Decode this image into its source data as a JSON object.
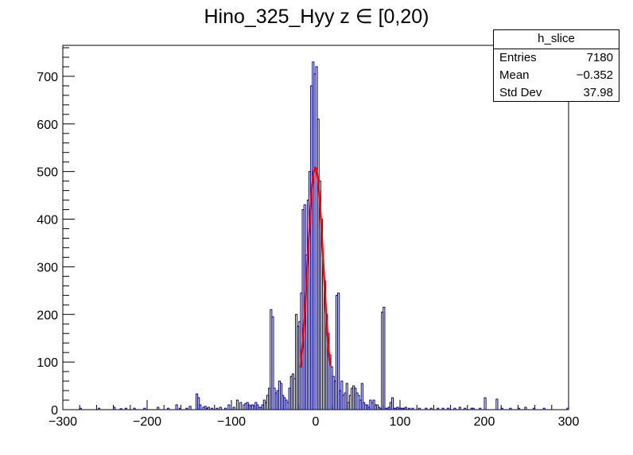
{
  "title": "Hino_325_Hyy z  ∈ [0,20)",
  "stats": {
    "name": "h_slice",
    "entries_label": "Entries",
    "entries_value": "7180",
    "mean_label": "Mean",
    "mean_value": "−0.352",
    "stddev_label": "Std Dev",
    "stddev_value": "37.98"
  },
  "chart_data": {
    "type": "histogram",
    "title": "Hino_325_Hyy z  ∈ [0,20)",
    "xlim": [
      -300,
      300
    ],
    "ylim": [
      0,
      765
    ],
    "x_ticks": [
      -300,
      -200,
      -100,
      0,
      100,
      200,
      300
    ],
    "y_ticks": [
      0,
      100,
      200,
      300,
      400,
      500,
      600,
      700
    ],
    "hist_color": "#00007f",
    "fit_color": "#ff0000",
    "bin_width": 2,
    "bin_centers": [
      -279,
      -257,
      -239,
      -231,
      -225,
      -215,
      -203,
      -187,
      -175,
      -165,
      -161,
      -153,
      -149,
      -141,
      -139,
      -137,
      -133,
      -131,
      -129,
      -127,
      -123,
      -117,
      -113,
      -107,
      -103,
      -97,
      -93,
      -89,
      -85,
      -83,
      -81,
      -79,
      -77,
      -75,
      -73,
      -71,
      -69,
      -67,
      -65,
      -63,
      -61,
      -59,
      -57,
      -55,
      -53,
      -51,
      -49,
      -47,
      -45,
      -43,
      -41,
      -39,
      -37,
      -35,
      -33,
      -31,
      -29,
      -27,
      -25,
      -23,
      -21,
      -19,
      -17,
      -15,
      -13,
      -11,
      -9,
      -7,
      -5,
      -3,
      -1,
      1,
      3,
      5,
      7,
      9,
      11,
      13,
      15,
      17,
      19,
      21,
      23,
      25,
      27,
      29,
      31,
      33,
      35,
      37,
      39,
      41,
      43,
      45,
      47,
      49,
      51,
      53,
      55,
      57,
      59,
      61,
      63,
      65,
      67,
      69,
      71,
      73,
      75,
      77,
      79,
      81,
      83,
      85,
      87,
      89,
      91,
      93,
      95,
      97,
      99,
      101,
      103,
      105,
      107,
      111,
      115,
      123,
      131,
      137,
      145,
      151,
      157,
      165,
      171,
      177,
      185,
      187,
      195,
      201,
      215,
      221,
      231,
      241,
      249,
      259,
      271,
      299
    ],
    "counts": [
      3,
      3,
      5,
      2,
      3,
      3,
      3,
      5,
      3,
      10,
      3,
      3,
      7,
      33,
      25,
      10,
      5,
      7,
      3,
      5,
      3,
      3,
      5,
      3,
      10,
      5,
      20,
      15,
      10,
      13,
      15,
      10,
      8,
      10,
      8,
      15,
      10,
      5,
      5,
      10,
      20,
      15,
      30,
      45,
      210,
      195,
      45,
      35,
      40,
      60,
      55,
      30,
      25,
      20,
      15,
      45,
      70,
      75,
      65,
      200,
      175,
      185,
      245,
      420,
      430,
      325,
      440,
      500,
      680,
      730,
      705,
      720,
      610,
      480,
      400,
      285,
      270,
      200,
      160,
      115,
      90,
      70,
      60,
      240,
      245,
      40,
      60,
      30,
      35,
      55,
      15,
      30,
      45,
      50,
      45,
      35,
      30,
      20,
      55,
      15,
      10,
      10,
      5,
      20,
      15,
      20,
      10,
      10,
      5,
      3,
      205,
      215,
      3,
      3,
      5,
      15,
      25,
      3,
      3,
      5,
      3,
      3,
      3,
      3,
      5,
      3,
      3,
      3,
      3,
      3,
      3,
      3,
      3,
      3,
      5,
      3,
      3,
      3,
      3,
      25,
      22,
      3,
      3,
      3,
      5,
      3,
      3,
      3,
      3,
      3,
      3
    ],
    "fit": {
      "type": "gaussian",
      "amplitude": 508,
      "mean": -0.4,
      "sigma": 9.4,
      "range": [
        -18,
        17
      ]
    }
  }
}
